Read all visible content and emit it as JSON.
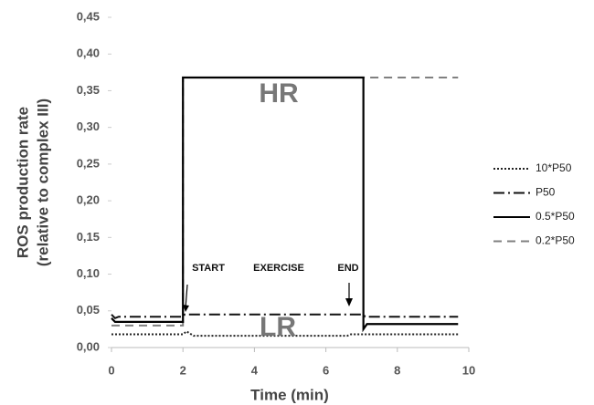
{
  "chart_data": {
    "type": "line",
    "xlabel": "Time (min)",
    "ylabel": [
      "ROS production rate",
      "(relative to complex III)"
    ],
    "xlim": [
      0,
      10
    ],
    "xticks": [
      0,
      2,
      4,
      6,
      8,
      10
    ],
    "ylim": [
      0,
      0.45
    ],
    "yticks": [
      {
        "value": 0,
        "label": "0,00"
      },
      {
        "value": 0.05,
        "label": "0,05"
      },
      {
        "value": 0.1,
        "label": "0,10"
      },
      {
        "value": 0.15,
        "label": "0,15"
      },
      {
        "value": 0.2,
        "label": "0,20"
      },
      {
        "value": 0.25,
        "label": "0,25"
      },
      {
        "value": 0.3,
        "label": "0,30"
      },
      {
        "value": 0.35,
        "label": "0,35"
      },
      {
        "value": 0.4,
        "label": "0,40"
      },
      {
        "value": 0.45,
        "label": "0,45"
      }
    ],
    "annotations": [
      "HR",
      "LR",
      "START",
      "EXERCISE",
      "END"
    ],
    "series": [
      {
        "name": "10*P50",
        "color": "#222222",
        "dash": "dotted",
        "x": [
          0,
          2,
          2.1,
          2.3,
          6.6,
          6.7,
          9.7
        ],
        "values": [
          0.018,
          0.018,
          0.022,
          0.016,
          0.016,
          0.018,
          0.018
        ]
      },
      {
        "name": "P50",
        "color": "#111111",
        "dash": "dashdot",
        "x": [
          0,
          0.1,
          0.2,
          2,
          2.05,
          7.05,
          7.1,
          9.7
        ],
        "values": [
          0.045,
          0.04,
          0.042,
          0.042,
          0.045,
          0.045,
          0.042,
          0.042
        ]
      },
      {
        "name": "0.5*P50",
        "color": "#000000",
        "dash": "solid",
        "x": [
          0,
          0.1,
          0.15,
          2,
          2,
          7.05,
          7.05,
          7.15,
          9.7
        ],
        "values": [
          0.04,
          0.035,
          0.035,
          0.035,
          0.368,
          0.368,
          0.025,
          0.032,
          0.032
        ]
      },
      {
        "name": "0.2*P50",
        "color": "#808080",
        "dash": "dashed",
        "x": [
          0,
          2,
          2,
          9.7
        ],
        "values": [
          0.03,
          0.03,
          0.368,
          0.368
        ]
      }
    ]
  }
}
